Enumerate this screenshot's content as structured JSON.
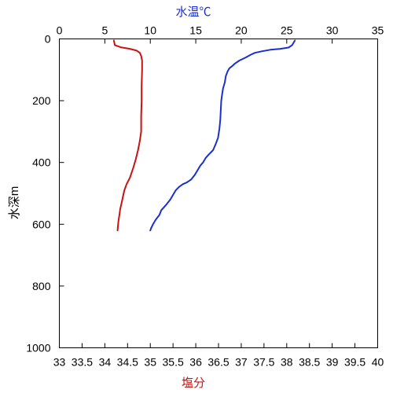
{
  "chart_data": {
    "type": "line",
    "axes": {
      "temperature": {
        "label": "水温℃",
        "position": "top",
        "range": [
          0,
          35
        ],
        "ticks": [
          0,
          5,
          10,
          15,
          20,
          25,
          30,
          35
        ],
        "color": "#1a2fd1"
      },
      "salinity": {
        "label": "塩分",
        "position": "bottom",
        "range": [
          33,
          40
        ],
        "ticks": [
          "33",
          "33.5",
          "34",
          "34.5",
          "35",
          "35.5",
          "36",
          "36.5",
          "37",
          "37.5",
          "38",
          "38.5",
          "39",
          "39.5",
          "40"
        ],
        "tick_values": [
          33,
          33.5,
          34,
          34.5,
          35,
          35.5,
          36,
          36.5,
          37,
          37.5,
          38,
          38.5,
          39,
          39.5,
          40
        ],
        "color": "#cc1111"
      },
      "depth": {
        "label": "水深m",
        "position": "left",
        "range": [
          0,
          1000
        ],
        "inverted": true,
        "ticks": [
          0,
          200,
          400,
          600,
          800,
          1000
        ],
        "color": "#000000"
      }
    },
    "series": [
      {
        "axis": "temperature",
        "color": "#1a2fd1",
        "points": [
          [
            25.9,
            5
          ],
          [
            25.6,
            20
          ],
          [
            25.2,
            28
          ],
          [
            24.3,
            32
          ],
          [
            23.2,
            35
          ],
          [
            22.3,
            40
          ],
          [
            21.5,
            45
          ],
          [
            21.0,
            52
          ],
          [
            20.5,
            60
          ],
          [
            19.8,
            70
          ],
          [
            19.3,
            80
          ],
          [
            19.0,
            88
          ],
          [
            18.7,
            95
          ],
          [
            18.5,
            105
          ],
          [
            18.3,
            120
          ],
          [
            18.2,
            140
          ],
          [
            18.0,
            160
          ],
          [
            17.9,
            180
          ],
          [
            17.8,
            200
          ],
          [
            17.75,
            230
          ],
          [
            17.7,
            260
          ],
          [
            17.6,
            290
          ],
          [
            17.45,
            320
          ],
          [
            17.2,
            340
          ],
          [
            16.9,
            360
          ],
          [
            16.4,
            375
          ],
          [
            16.1,
            385
          ],
          [
            15.8,
            400
          ],
          [
            15.5,
            410
          ],
          [
            15.2,
            425
          ],
          [
            14.9,
            440
          ],
          [
            14.5,
            455
          ],
          [
            14.0,
            465
          ],
          [
            13.6,
            470
          ],
          [
            13.2,
            478
          ],
          [
            12.8,
            490
          ],
          [
            12.5,
            505
          ],
          [
            12.2,
            520
          ],
          [
            11.8,
            535
          ],
          [
            11.5,
            545
          ],
          [
            11.2,
            555
          ],
          [
            11.0,
            570
          ],
          [
            10.6,
            585
          ],
          [
            10.3,
            600
          ],
          [
            10.1,
            612
          ],
          [
            10.0,
            620
          ]
        ]
      },
      {
        "axis": "salinity",
        "color": "#cc1111",
        "points": [
          [
            34.2,
            5
          ],
          [
            34.22,
            20
          ],
          [
            34.35,
            27
          ],
          [
            34.55,
            32
          ],
          [
            34.7,
            38
          ],
          [
            34.77,
            45
          ],
          [
            34.8,
            55
          ],
          [
            34.82,
            70
          ],
          [
            34.82,
            100
          ],
          [
            34.81,
            150
          ],
          [
            34.81,
            200
          ],
          [
            34.8,
            250
          ],
          [
            34.8,
            300
          ],
          [
            34.77,
            330
          ],
          [
            34.73,
            360
          ],
          [
            34.68,
            390
          ],
          [
            34.62,
            420
          ],
          [
            34.55,
            450
          ],
          [
            34.48,
            470
          ],
          [
            34.43,
            490
          ],
          [
            34.4,
            510
          ],
          [
            34.37,
            530
          ],
          [
            34.34,
            550
          ],
          [
            34.32,
            570
          ],
          [
            34.3,
            590
          ],
          [
            34.29,
            605
          ],
          [
            34.28,
            620
          ]
        ]
      }
    ],
    "grid": false
  }
}
